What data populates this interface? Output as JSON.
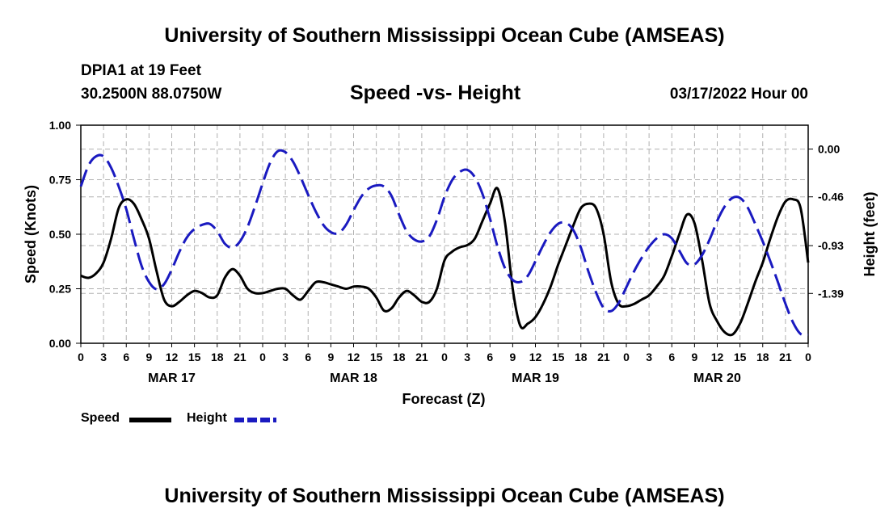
{
  "header": {
    "title": "University of Southern Mississippi Ocean Cube (AMSEAS)",
    "station": "DPIA1 at 19 Feet",
    "coords": "30.2500N  88.0750W",
    "subtitle": "Speed -vs- Height",
    "datestamp": "03/17/2022 Hour 00"
  },
  "footer": {
    "title": "University of Southern Mississippi Ocean Cube (AMSEAS)"
  },
  "legend": {
    "speed_label": "Speed",
    "height_label": "Height"
  },
  "colors": {
    "speed": "#000000",
    "height": "#1a1ac0",
    "grid": "#b0b0b0"
  },
  "chart_data": {
    "type": "line",
    "title": "Speed -vs- Height",
    "xlabel": "Forecast (Z)",
    "ylabel": "Speed (Knots)",
    "y2label": "Height (feet)",
    "xlim": [
      0,
      96
    ],
    "ylim": [
      0,
      1
    ],
    "y2lim": [
      0.23,
      -1.87
    ],
    "x_ticks": [
      0,
      3,
      6,
      9,
      12,
      15,
      18,
      21,
      24,
      27,
      30,
      33,
      36,
      39,
      42,
      45,
      48,
      51,
      54,
      57,
      60,
      63,
      66,
      69,
      72,
      75,
      78,
      81,
      84,
      87,
      90,
      93,
      96
    ],
    "x_tick_labels": [
      "0",
      "3",
      "6",
      "9",
      "12",
      "15",
      "18",
      "21",
      "0",
      "3",
      "6",
      "9",
      "12",
      "15",
      "18",
      "21",
      "0",
      "3",
      "6",
      "9",
      "12",
      "15",
      "18",
      "21",
      "0",
      "3",
      "6",
      "9",
      "12",
      "15",
      "18",
      "21",
      "0"
    ],
    "day_labels": [
      {
        "x": 12,
        "label": "MAR 17"
      },
      {
        "x": 36,
        "label": "MAR 18"
      },
      {
        "x": 60,
        "label": "MAR 19"
      },
      {
        "x": 84,
        "label": "MAR 20"
      }
    ],
    "y_ticks": [
      0,
      0.25,
      0.5,
      0.75,
      1.0
    ],
    "y_tick_labels": [
      "0.00",
      "0.25",
      "0.50",
      "0.75",
      "1.00"
    ],
    "y2_ticks": [
      0.0,
      -0.46,
      -0.93,
      -1.39
    ],
    "y2_tick_labels": [
      "0.00",
      "-0.46",
      "-0.93",
      "-1.39"
    ],
    "series": [
      {
        "name": "Speed",
        "axis": "left",
        "x": [
          0,
          1,
          2,
          3,
          4,
          5,
          6,
          7,
          8,
          9,
          10,
          11,
          12,
          13,
          14,
          15,
          16,
          17,
          18,
          19,
          20,
          21,
          22,
          23,
          24,
          25,
          26,
          27,
          28,
          29,
          30,
          31,
          32,
          33,
          34,
          35,
          36,
          37,
          38,
          39,
          40,
          41,
          42,
          43,
          44,
          45,
          46,
          47,
          48,
          49,
          50,
          51,
          52,
          53,
          54,
          55,
          56,
          57,
          58,
          59,
          60,
          61,
          62,
          63,
          64,
          65,
          66,
          67,
          68,
          69,
          70,
          71,
          72,
          73,
          74,
          75,
          76,
          77,
          78,
          79,
          80,
          81,
          82,
          83,
          84,
          85,
          86,
          87,
          88,
          89,
          90,
          91,
          92,
          93,
          94,
          95,
          96
        ],
        "values": [
          0.31,
          0.3,
          0.32,
          0.37,
          0.48,
          0.62,
          0.66,
          0.64,
          0.57,
          0.48,
          0.33,
          0.2,
          0.17,
          0.19,
          0.22,
          0.24,
          0.23,
          0.21,
          0.22,
          0.3,
          0.34,
          0.31,
          0.25,
          0.23,
          0.23,
          0.24,
          0.25,
          0.25,
          0.22,
          0.2,
          0.24,
          0.28,
          0.28,
          0.27,
          0.26,
          0.25,
          0.26,
          0.26,
          0.25,
          0.21,
          0.15,
          0.16,
          0.21,
          0.24,
          0.22,
          0.19,
          0.19,
          0.25,
          0.38,
          0.42,
          0.44,
          0.45,
          0.48,
          0.56,
          0.64,
          0.71,
          0.55,
          0.25,
          0.08,
          0.09,
          0.12,
          0.18,
          0.26,
          0.36,
          0.45,
          0.54,
          0.62,
          0.64,
          0.62,
          0.5,
          0.28,
          0.18,
          0.17,
          0.18,
          0.2,
          0.22,
          0.26,
          0.31,
          0.4,
          0.5,
          0.59,
          0.55,
          0.38,
          0.18,
          0.1,
          0.05,
          0.04,
          0.09,
          0.18,
          0.28,
          0.37,
          0.48,
          0.58,
          0.65,
          0.66,
          0.62,
          0.37
        ]
      },
      {
        "name": "Height",
        "axis": "right",
        "x": [
          0,
          1,
          2,
          3,
          4,
          5,
          6,
          7,
          8,
          9,
          10,
          11,
          12,
          13,
          14,
          15,
          16,
          17,
          18,
          19,
          20,
          21,
          22,
          23,
          24,
          25,
          26,
          27,
          28,
          29,
          30,
          31,
          32,
          33,
          34,
          35,
          36,
          37,
          38,
          39,
          40,
          41,
          42,
          43,
          44,
          45,
          46,
          47,
          48,
          49,
          50,
          51,
          52,
          53,
          54,
          55,
          56,
          57,
          58,
          59,
          60,
          61,
          62,
          63,
          64,
          65,
          66,
          67,
          68,
          69,
          70,
          71,
          72,
          73,
          74,
          75,
          76,
          77,
          78,
          79,
          80,
          81,
          82,
          83,
          84,
          85,
          86,
          87,
          88,
          89,
          90,
          91,
          92,
          93,
          94,
          95,
          96
        ],
        "values": [
          -0.36,
          -0.16,
          -0.07,
          -0.07,
          -0.18,
          -0.36,
          -0.58,
          -0.86,
          -1.12,
          -1.28,
          -1.35,
          -1.3,
          -1.16,
          -0.99,
          -0.85,
          -0.77,
          -0.73,
          -0.72,
          -0.79,
          -0.91,
          -0.95,
          -0.89,
          -0.75,
          -0.55,
          -0.33,
          -0.13,
          -0.02,
          -0.03,
          -0.12,
          -0.27,
          -0.44,
          -0.6,
          -0.73,
          -0.8,
          -0.81,
          -0.73,
          -0.59,
          -0.46,
          -0.38,
          -0.35,
          -0.36,
          -0.45,
          -0.63,
          -0.79,
          -0.87,
          -0.89,
          -0.84,
          -0.68,
          -0.46,
          -0.3,
          -0.22,
          -0.2,
          -0.27,
          -0.43,
          -0.67,
          -0.94,
          -1.15,
          -1.26,
          -1.28,
          -1.22,
          -1.08,
          -0.93,
          -0.8,
          -0.72,
          -0.71,
          -0.78,
          -0.95,
          -1.18,
          -1.38,
          -1.53,
          -1.56,
          -1.48,
          -1.33,
          -1.18,
          -1.05,
          -0.94,
          -0.86,
          -0.82,
          -0.86,
          -0.98,
          -1.1,
          -1.11,
          -1.02,
          -0.87,
          -0.69,
          -0.55,
          -0.47,
          -0.47,
          -0.56,
          -0.72,
          -0.89,
          -1.08,
          -1.28,
          -1.49,
          -1.67,
          -1.78,
          -1.79
        ]
      }
    ]
  }
}
